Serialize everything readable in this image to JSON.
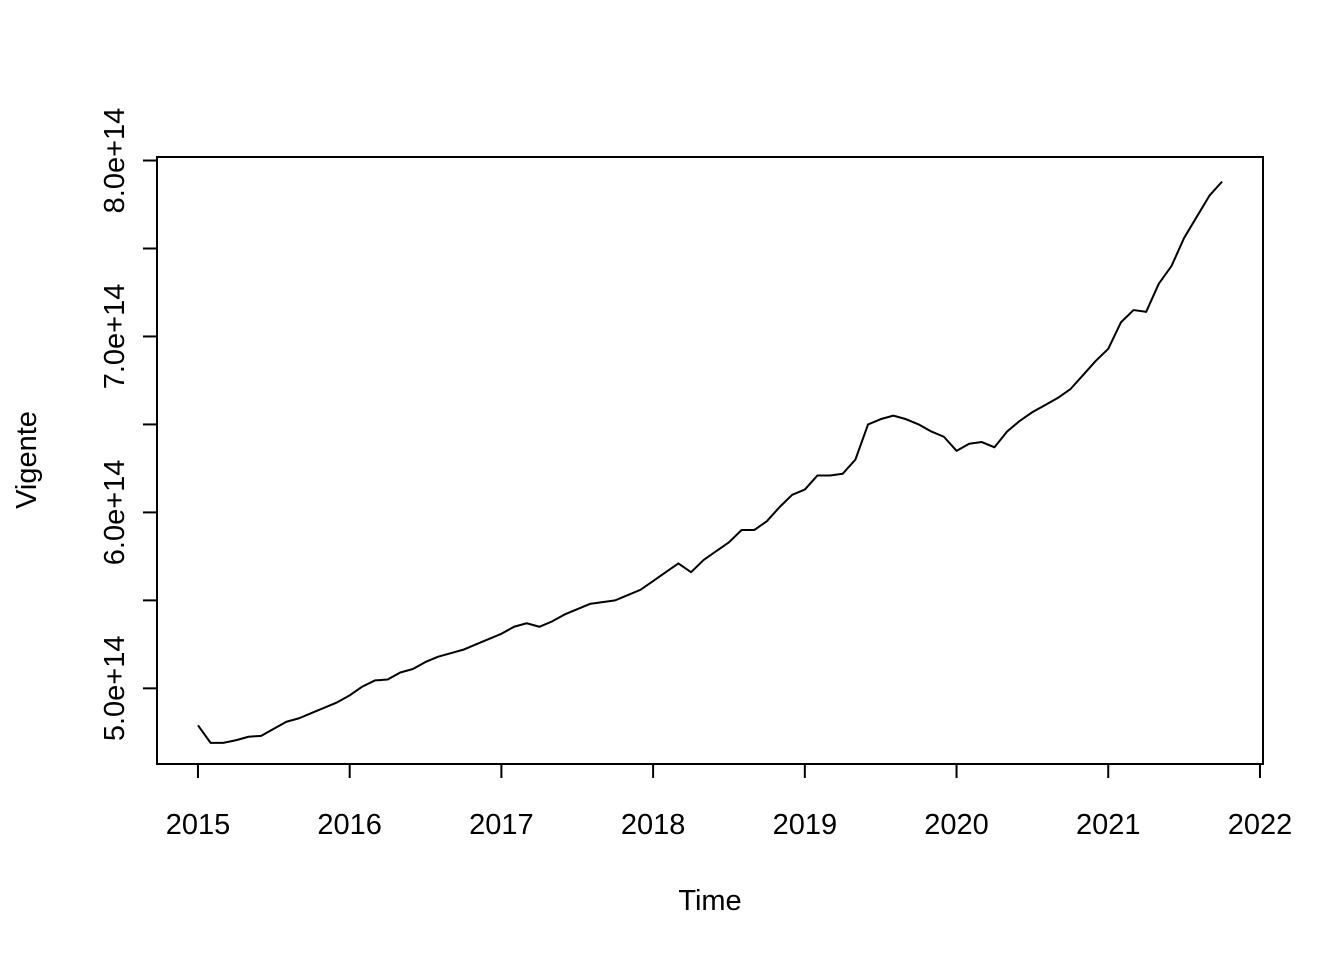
{
  "chart_data": {
    "type": "line",
    "xlabel": "Time",
    "ylabel": "Vigente",
    "xlim": [
      2014.73,
      2022.02
    ],
    "ylim": [
      457000000000000.0,
      802000000000000.0
    ],
    "x_ticks": [
      2015,
      2016,
      2017,
      2018,
      2019,
      2020,
      2021,
      2022
    ],
    "x_tick_labels": [
      "2015",
      "2016",
      "2017",
      "2018",
      "2019",
      "2020",
      "2021",
      "2022"
    ],
    "y_ticks": [
      500000000000000.0,
      550000000000000.0,
      600000000000000.0,
      650000000000000.0,
      700000000000000.0,
      750000000000000.0,
      800000000000000.0
    ],
    "y_tick_labels": [
      "5.0e+14",
      "",
      "6.0e+14",
      "",
      "7.0e+14",
      "",
      "8.0e+14"
    ],
    "grid": false,
    "legend": "none",
    "x_start": 2015,
    "frequency": 12,
    "series": [
      {
        "values": [
          479000000000000.0,
          469000000000000.0,
          469000000000000.0,
          470500000000000.0,
          472500000000000.0,
          473000000000000.0,
          477000000000000.0,
          481000000000000.0,
          483000000000000.0,
          486000000000000.0,
          489000000000000.0,
          492000000000000.0,
          496000000000000.0,
          501000000000000.0,
          504500000000000.0,
          505000000000000.0,
          509000000000000.0,
          511000000000000.0,
          515000000000000.0,
          518000000000000.0,
          520000000000000.0,
          522000000000000.0,
          525000000000000.0,
          528000000000000.0,
          531000000000000.0,
          535000000000000.0,
          537000000000000.0,
          535000000000000.0,
          538000000000000.0,
          542000000000000.0,
          545000000000000.0,
          548000000000000.0,
          549000000000000.0,
          550000000000000.0,
          553000000000000.0,
          556000000000000.0,
          561000000000000.0,
          566000000000000.0,
          571000000000000.0,
          566000000000000.0,
          573000000000000.0,
          578000000000000.0,
          583000000000000.0,
          590000000000000.0,
          590000000000000.0,
          595000000000000.0,
          603000000000000.0,
          610000000000000.0,
          613000000000000.0,
          621000000000000.0,
          621000000000000.0,
          622000000000000.0,
          630000000000000.0,
          650000000000000.0,
          653000000000000.0,
          655000000000000.0,
          653000000000000.0,
          650000000000000.0,
          646000000000000.0,
          643000000000000.0,
          635000000000000.0,
          639000000000000.0,
          640000000000000.0,
          637000000000000.0,
          646000000000000.0,
          652000000000000.0,
          657000000000000.0,
          661000000000000.0,
          665000000000000.0,
          670000000000000.0,
          678000000000000.0,
          686000000000000.0,
          693000000000000.0,
          708000000000000.0,
          715000000000000.0,
          714000000000000.0,
          730000000000000.0,
          740000000000000.0,
          756000000000000.0,
          768000000000000.0,
          780000000000000.0,
          788000000000000.0
        ]
      }
    ]
  }
}
